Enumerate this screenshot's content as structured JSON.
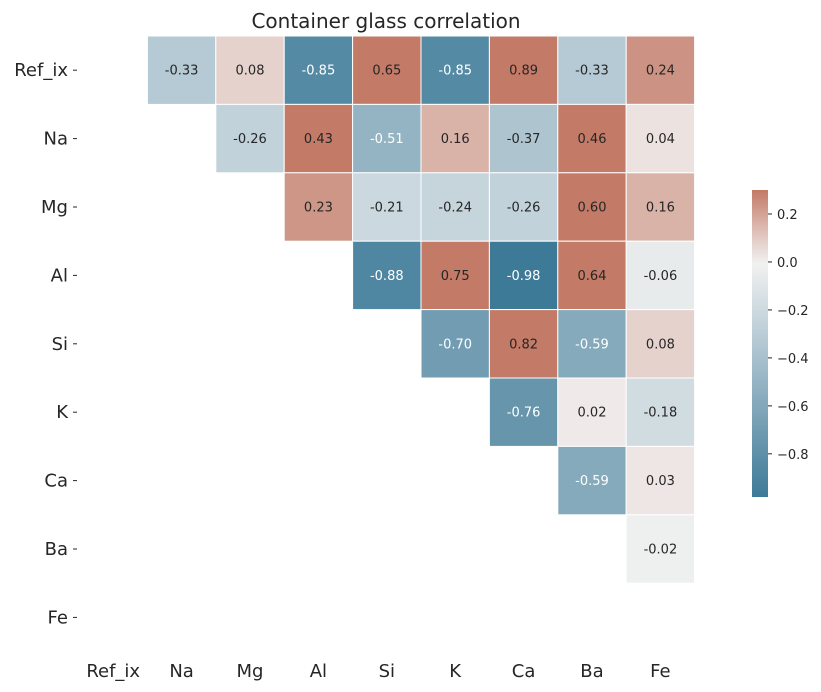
{
  "chart_data": {
    "type": "heatmap",
    "title": "Container glass correlation",
    "xlabel": "",
    "ylabel": "",
    "rows": [
      "Ref_ix",
      "Na",
      "Mg",
      "Al",
      "Si",
      "K",
      "Ca",
      "Ba",
      "Fe"
    ],
    "cols": [
      "Ref_ix",
      "Na",
      "Mg",
      "Al",
      "Si",
      "K",
      "Ca",
      "Ba",
      "Fe"
    ],
    "mask": "lower-triangle-and-diagonal",
    "cells": [
      {
        "row": "Ref_ix",
        "col": "Na",
        "value": -0.33,
        "label": "-0.33"
      },
      {
        "row": "Ref_ix",
        "col": "Mg",
        "value": 0.08,
        "label": "0.08"
      },
      {
        "row": "Ref_ix",
        "col": "Al",
        "value": -0.85,
        "label": "-0.85"
      },
      {
        "row": "Ref_ix",
        "col": "Si",
        "value": 0.65,
        "label": "0.65"
      },
      {
        "row": "Ref_ix",
        "col": "K",
        "value": -0.85,
        "label": "-0.85"
      },
      {
        "row": "Ref_ix",
        "col": "Ca",
        "value": 0.89,
        "label": "0.89"
      },
      {
        "row": "Ref_ix",
        "col": "Ba",
        "value": -0.33,
        "label": "-0.33"
      },
      {
        "row": "Ref_ix",
        "col": "Fe",
        "value": 0.24,
        "label": "0.24"
      },
      {
        "row": "Na",
        "col": "Mg",
        "value": -0.26,
        "label": "-0.26"
      },
      {
        "row": "Na",
        "col": "Al",
        "value": 0.43,
        "label": "0.43"
      },
      {
        "row": "Na",
        "col": "Si",
        "value": -0.51,
        "label": "-0.51"
      },
      {
        "row": "Na",
        "col": "K",
        "value": 0.16,
        "label": "0.16"
      },
      {
        "row": "Na",
        "col": "Ca",
        "value": -0.37,
        "label": "-0.37"
      },
      {
        "row": "Na",
        "col": "Ba",
        "value": 0.46,
        "label": "0.46"
      },
      {
        "row": "Na",
        "col": "Fe",
        "value": 0.04,
        "label": "0.04"
      },
      {
        "row": "Mg",
        "col": "Al",
        "value": 0.23,
        "label": "0.23"
      },
      {
        "row": "Mg",
        "col": "Si",
        "value": -0.21,
        "label": "-0.21"
      },
      {
        "row": "Mg",
        "col": "K",
        "value": -0.24,
        "label": "-0.24"
      },
      {
        "row": "Mg",
        "col": "Ca",
        "value": -0.26,
        "label": "-0.26"
      },
      {
        "row": "Mg",
        "col": "Ba",
        "value": 0.6,
        "label": "0.60"
      },
      {
        "row": "Mg",
        "col": "Fe",
        "value": 0.16,
        "label": "0.16"
      },
      {
        "row": "Al",
        "col": "Si",
        "value": -0.88,
        "label": "-0.88"
      },
      {
        "row": "Al",
        "col": "K",
        "value": 0.75,
        "label": "0.75"
      },
      {
        "row": "Al",
        "col": "Ca",
        "value": -0.98,
        "label": "-0.98"
      },
      {
        "row": "Al",
        "col": "Ba",
        "value": 0.64,
        "label": "0.64"
      },
      {
        "row": "Al",
        "col": "Fe",
        "value": -0.06,
        "label": "-0.06"
      },
      {
        "row": "Si",
        "col": "K",
        "value": -0.7,
        "label": "-0.70"
      },
      {
        "row": "Si",
        "col": "Ca",
        "value": 0.82,
        "label": "0.82"
      },
      {
        "row": "Si",
        "col": "Ba",
        "value": -0.59,
        "label": "-0.59"
      },
      {
        "row": "Si",
        "col": "Fe",
        "value": 0.08,
        "label": "0.08"
      },
      {
        "row": "K",
        "col": "Ca",
        "value": -0.76,
        "label": "-0.76"
      },
      {
        "row": "K",
        "col": "Ba",
        "value": 0.02,
        "label": "0.02"
      },
      {
        "row": "K",
        "col": "Fe",
        "value": -0.18,
        "label": "-0.18"
      },
      {
        "row": "Ca",
        "col": "Ba",
        "value": -0.59,
        "label": "-0.59"
      },
      {
        "row": "Ca",
        "col": "Fe",
        "value": 0.03,
        "label": "0.03"
      },
      {
        "row": "Ba",
        "col": "Fe",
        "value": -0.02,
        "label": "-0.02"
      }
    ],
    "colorbar": {
      "vmin": -0.98,
      "vmax": 0.3,
      "ticks": [
        {
          "value": 0.2,
          "label": "0.2"
        },
        {
          "value": 0.0,
          "label": "0.0"
        },
        {
          "value": -0.2,
          "label": "−0.2"
        },
        {
          "value": -0.4,
          "label": "−0.4"
        },
        {
          "value": -0.6,
          "label": "−0.6"
        },
        {
          "value": -0.8,
          "label": "−0.8"
        }
      ],
      "placement": "right"
    },
    "colors": {
      "negative": "#3d7a98",
      "center": "#f2f2f2",
      "positive": "#c37a67",
      "text_dark": "#262626",
      "text_light": "#ffffff"
    },
    "grid": false
  }
}
